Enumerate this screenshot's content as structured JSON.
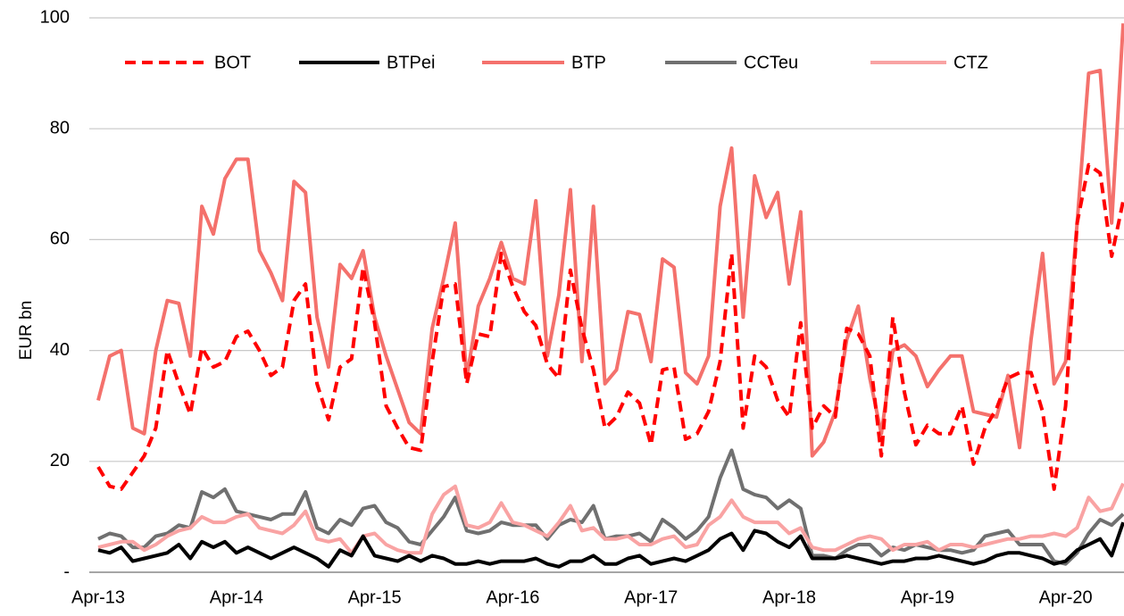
{
  "chart_data": {
    "type": "line",
    "y_label": "EUR bn",
    "categories": [
      "Apr-13",
      null,
      null,
      null,
      null,
      null,
      null,
      null,
      null,
      null,
      null,
      null,
      "Apr-14",
      null,
      null,
      null,
      null,
      null,
      null,
      null,
      null,
      null,
      null,
      null,
      "Apr-15",
      null,
      null,
      null,
      null,
      null,
      null,
      null,
      null,
      null,
      null,
      null,
      "Apr-16",
      null,
      null,
      null,
      null,
      null,
      null,
      null,
      null,
      null,
      null,
      null,
      "Apr-17",
      null,
      null,
      null,
      null,
      null,
      null,
      null,
      null,
      null,
      null,
      null,
      "Apr-18",
      null,
      null,
      null,
      null,
      null,
      null,
      null,
      null,
      null,
      null,
      null,
      "Apr-19",
      null,
      null,
      null,
      null,
      null,
      null,
      null,
      null,
      null,
      null,
      null,
      "Apr-20",
      null,
      null,
      null,
      null,
      null
    ],
    "ylim": [
      0,
      100
    ],
    "yticks": [
      {
        "value": 0,
        "label": "-"
      },
      20,
      40,
      60,
      80,
      100
    ],
    "grid": true,
    "legend": "top",
    "series": [
      {
        "name": "BOT",
        "color": "#ff0000",
        "style": "dashed",
        "values": [
          19,
          15.5,
          15,
          18,
          21,
          26,
          40,
          34,
          28.5,
          40.5,
          37,
          38,
          42.5,
          43.5,
          40,
          35.5,
          37,
          49,
          52,
          34,
          27.5,
          37,
          38.5,
          55,
          45,
          30,
          26,
          22.5,
          22,
          38,
          51.5,
          52,
          34,
          43,
          42.5,
          57.5,
          51.5,
          47,
          44.5,
          37.5,
          35,
          54.5,
          44,
          36.5,
          26,
          28,
          32.5,
          30.5,
          23,
          36.5,
          37,
          24,
          25,
          29,
          38,
          57.5,
          26,
          39,
          37,
          31,
          28,
          45,
          26,
          30,
          28,
          44,
          43,
          39,
          21,
          46,
          32.5,
          23,
          26.5,
          25,
          25,
          30,
          19.5,
          26,
          29.5,
          35,
          36,
          36,
          29,
          15,
          30,
          63,
          73.5,
          72,
          57,
          67
        ]
      },
      {
        "name": "BTPei",
        "color": "#000000",
        "style": "solid",
        "values": [
          4,
          3.5,
          4.5,
          2,
          2.5,
          3,
          3.5,
          5,
          2.5,
          5.5,
          4.5,
          5.5,
          3.5,
          4.5,
          3.5,
          2.5,
          3.5,
          4.5,
          3.5,
          2.5,
          1,
          4,
          3,
          6.5,
          3,
          2.5,
          2,
          3,
          2,
          3,
          2.5,
          1.5,
          1.5,
          2,
          1.5,
          2,
          2,
          2,
          2.5,
          1.5,
          1,
          2,
          2,
          3,
          1.5,
          1.5,
          2.5,
          3,
          1.5,
          2,
          2.5,
          2,
          3,
          4,
          6,
          7,
          4,
          7.5,
          7,
          5.5,
          4.5,
          6.5,
          2.5,
          2.5,
          2.5,
          3,
          2.5,
          2,
          1.5,
          2,
          2,
          2.5,
          2.5,
          3,
          2.5,
          2,
          1.5,
          2,
          3,
          3.5,
          3.5,
          3,
          2.5,
          1.5,
          2,
          4,
          5,
          6,
          3,
          9
        ]
      },
      {
        "name": "BTP",
        "color": "#f4716c",
        "style": "solid",
        "values": [
          31,
          39,
          40,
          26,
          25,
          40,
          49,
          48.5,
          39,
          66,
          61,
          71,
          74.5,
          74.5,
          58,
          54,
          49,
          70.5,
          68.5,
          46,
          37,
          55.5,
          53,
          58,
          46,
          39,
          33,
          27,
          25,
          44,
          53,
          63,
          35,
          48,
          53,
          59.5,
          53,
          52,
          67,
          39,
          50,
          69,
          38,
          66,
          34,
          36.5,
          47,
          46.5,
          38,
          56.5,
          55,
          36,
          34,
          39,
          66,
          76.5,
          46,
          71.5,
          64,
          68.5,
          52,
          65,
          21,
          23.5,
          29,
          42,
          48,
          35,
          25,
          40,
          41,
          39,
          33.5,
          36.5,
          39,
          39,
          29,
          28.5,
          28,
          35.5,
          22.5,
          42,
          57.5,
          34,
          38,
          63,
          90,
          90.5,
          63,
          99
        ]
      },
      {
        "name": "CCTeu",
        "color": "#707070",
        "style": "solid",
        "values": [
          6,
          7,
          6.5,
          4.5,
          4.5,
          6.5,
          7,
          8.5,
          8,
          14.5,
          13.5,
          15,
          11,
          10.5,
          10,
          9.5,
          10.5,
          10.5,
          14.5,
          8,
          7,
          9.5,
          8.5,
          11.5,
          12,
          9,
          8,
          5.5,
          5,
          7.5,
          10,
          13.5,
          7.5,
          7,
          7.5,
          9,
          8.5,
          8.5,
          8.5,
          6,
          8.5,
          9.5,
          9,
          12,
          6,
          6.5,
          6.5,
          7,
          5.5,
          9.5,
          8,
          6,
          7.5,
          10,
          17,
          22,
          15,
          14,
          13.5,
          11.5,
          13,
          11.5,
          3,
          3,
          2.5,
          4,
          5,
          5,
          3,
          4.5,
          4,
          5,
          4.5,
          4,
          4,
          3.5,
          4,
          6.5,
          7,
          7.5,
          5,
          5,
          5,
          2,
          1.5,
          3.5,
          7,
          9.5,
          8.5,
          10.5
        ]
      },
      {
        "name": "CTZ",
        "color": "#f9a3a3",
        "style": "solid",
        "values": [
          4.5,
          5,
          5.5,
          5.5,
          4,
          5,
          6.5,
          7.5,
          8,
          10,
          9,
          9,
          10,
          10.5,
          8,
          7.5,
          7,
          8.5,
          11,
          6,
          5.5,
          6,
          3.5,
          6.5,
          7,
          5,
          4,
          3.5,
          3.5,
          10.5,
          14,
          15.5,
          8.5,
          8,
          9,
          12.5,
          9,
          8.5,
          7.5,
          6.5,
          9,
          12,
          7.5,
          8,
          6,
          6,
          6.5,
          5,
          5,
          6,
          6.5,
          4.5,
          5,
          8.5,
          10,
          13,
          10,
          9,
          9,
          9,
          7,
          8,
          4.5,
          4,
          4,
          5,
          6,
          6.5,
          6,
          4,
          5,
          5,
          5.5,
          4,
          5,
          5,
          4.5,
          5,
          5.5,
          6,
          6,
          6.5,
          6.5,
          7,
          6.5,
          8,
          13.5,
          11,
          11.5,
          16
        ]
      }
    ]
  }
}
